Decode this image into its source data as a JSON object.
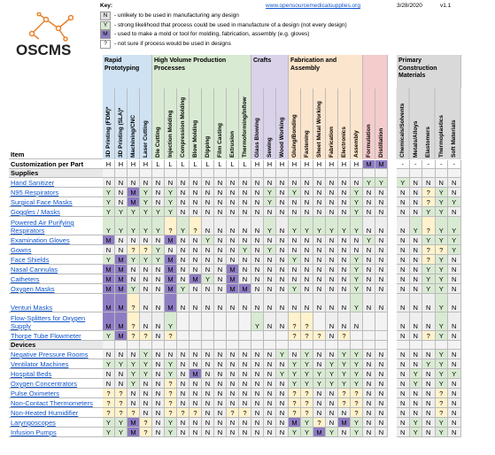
{
  "logo": "OSCMS",
  "key": {
    "title": "Key:",
    "link": "www.opensourcemedicalsupplies.org",
    "date": "3/28/2020",
    "version": "v1.1",
    "items": [
      {
        "code": "N",
        "text": "- unlikely to be used in manufacturing any design",
        "color": "#e0e0e0"
      },
      {
        "code": "Y",
        "text": "- strong likelihood that process could be used in manufacture of a design (not every design)",
        "color": "#d9ead3"
      },
      {
        "code": "M",
        "text": "- used to make a mold or tool for molding, fabrication, assembly (e.g. gloves)",
        "color": "#8e7cc3"
      },
      {
        "code": "?",
        "text": "- not sure if process would be used in designs",
        "color": "#ffffff"
      }
    ]
  },
  "table": {
    "item_header": "Item",
    "customization_label": "Customization per Part",
    "cell_colors": {
      "N": "#eeeeee",
      "Y": "#d9ead3",
      "M": "#8e7cc3",
      "?": "#fff2cc"
    },
    "groups": [
      {
        "name": "Rapid Prototyping",
        "color": "#cfe2f3",
        "columns": [
          "3D Printing (FDM)*",
          "3D Printing (SLA)*",
          "Machining/CNC Mill/Routing",
          "Laser Cutting"
        ]
      },
      {
        "name": "High Volume Production Processes",
        "color": "#d9ead3",
        "columns": [
          "Die Cutting",
          "Injection Molding",
          "Compression Molding",
          "Blow Molding",
          "Dipping",
          "Film Casting",
          "Extrusion",
          "Thermoforming/Inflow"
        ]
      },
      {
        "name": "Crafts",
        "color": "#d9d2e9",
        "columns": [
          "Glass Blowing",
          "Sewing",
          "Wood Working"
        ]
      },
      {
        "name": "Fabrication and Assembly",
        "color": "#fce5cd",
        "columns": [
          "Gluing/Bonding",
          "Fastening",
          "Sheet Metal Working",
          "Fabrication",
          "Electronics",
          "Assembly"
        ]
      },
      {
        "name": null,
        "color": "#f4cccc",
        "columns": [
          "Formulation",
          "Distillation"
        ]
      },
      {
        "name": "Primary Construction Materials",
        "color": "#d9d9d9",
        "columns": [
          "Chemicals/Solvents",
          "Metals/Alloys",
          "Elastomers",
          "Thermoplastics",
          "Soft Materials"
        ]
      }
    ],
    "customization": [
      "H",
      "H",
      "H",
      "H",
      "L",
      "L",
      "L",
      "L",
      "L",
      "L",
      "L",
      "L",
      "H",
      "H",
      "H",
      "H",
      "H",
      "H",
      "H",
      "H",
      "H",
      "M",
      "M",
      "-",
      "-",
      "-",
      "-",
      "-"
    ],
    "sections": [
      {
        "name": "Supplies",
        "rows": [
          {
            "item": "Hand Sanitizer",
            "cells": [
              "N",
              "N",
              "N",
              "N",
              "N",
              "N",
              "N",
              "N",
              "N",
              "N",
              "N",
              "N",
              "N",
              "N",
              "N",
              "N",
              "N",
              "N",
              "N",
              "N",
              "N",
              "Y",
              "Y",
              "Y",
              "N",
              "N",
              "N",
              "N"
            ]
          },
          {
            "item": "N95 Respirators",
            "cells": [
              "Y",
              "N",
              "M",
              "Y",
              "N",
              "Y",
              "N",
              "N",
              "N",
              "N",
              "N",
              "N",
              "N",
              "Y",
              "N",
              "Y",
              "N",
              "N",
              "N",
              "N",
              "Y",
              "N",
              "N",
              "N",
              "N",
              "?",
              "Y",
              "N"
            ]
          },
          {
            "item": "Surgical Face Masks",
            "cells": [
              "Y",
              "N",
              "M",
              "Y",
              "N",
              "Y",
              "N",
              "N",
              "N",
              "N",
              "N",
              "N",
              "N",
              "Y",
              "N",
              "N",
              "N",
              "N",
              "N",
              "N",
              "Y",
              "N",
              "N",
              "N",
              "N",
              "?",
              "Y",
              "Y"
            ]
          },
          {
            "item": "Goggles / Masks",
            "cells": [
              "Y",
              "Y",
              "Y",
              "Y",
              "Y",
              "Y",
              "N",
              "N",
              "N",
              "N",
              "N",
              "N",
              "N",
              "N",
              "N",
              "N",
              "N",
              "N",
              "N",
              "N",
              "Y",
              "N",
              "N",
              "N",
              "N",
              "Y",
              "Y",
              "N"
            ]
          },
          {
            "item": "Powered Air Purifying Respirators",
            "cells": [
              "Y",
              "Y",
              "Y",
              "Y",
              "Y",
              "?",
              "Y",
              "?",
              "N",
              "N",
              "N",
              "N",
              "N",
              "Y",
              "N",
              "Y",
              "Y",
              "Y",
              "Y",
              "Y",
              "Y",
              "N",
              "N",
              "N",
              "Y",
              "?",
              "Y",
              "Y"
            ]
          },
          {
            "item": "Examination Gloves",
            "cells": [
              "M",
              "N",
              "N",
              "N",
              "N",
              "M",
              "N",
              "N",
              "Y",
              "N",
              "N",
              "N",
              "N",
              "N",
              "N",
              "N",
              "N",
              "N",
              "N",
              "N",
              "N",
              "Y",
              "N",
              "N",
              "N",
              "Y",
              "Y",
              "Y"
            ]
          },
          {
            "item": "Gowns",
            "cells": [
              "N",
              "N",
              "?",
              "?",
              "Y",
              "N",
              "N",
              "N",
              "N",
              "N",
              "N",
              "Y",
              "N",
              "Y",
              "N",
              "N",
              "N",
              "N",
              "N",
              "N",
              "N",
              "N",
              "N",
              "N",
              "N",
              "?",
              "?",
              "Y"
            ]
          },
          {
            "item": "Face Shields",
            "cells": [
              "Y",
              "M",
              "Y",
              "Y",
              "Y",
              "M",
              "N",
              "N",
              "N",
              "N",
              "N",
              "N",
              "N",
              "N",
              "N",
              "Y",
              "N",
              "N",
              "N",
              "N",
              "Y",
              "N",
              "N",
              "N",
              "N",
              "?",
              "Y",
              "N"
            ]
          },
          {
            "item": "Nasal Cannulas",
            "cells": [
              "M",
              "M",
              "N",
              "N",
              "N",
              "M",
              "N",
              "N",
              "N",
              "N",
              "M",
              "N",
              "N",
              "N",
              "N",
              "N",
              "N",
              "N",
              "N",
              "N",
              "Y",
              "N",
              "N",
              "N",
              "N",
              "Y",
              "Y",
              "N"
            ]
          },
          {
            "item": "Catheters",
            "cells": [
              "M",
              "M",
              "N",
              "N",
              "N",
              "M",
              "N",
              "M",
              "Y",
              "N",
              "M",
              "N",
              "N",
              "N",
              "N",
              "N",
              "N",
              "N",
              "N",
              "N",
              "Y",
              "N",
              "N",
              "N",
              "N",
              "Y",
              "Y",
              "N"
            ]
          },
          {
            "item": "Oxygen Masks",
            "cells": [
              "M",
              "M",
              "Y",
              "N",
              "N",
              "M",
              "Y",
              "N",
              "N",
              "N",
              "M",
              "M",
              "N",
              "N",
              "N",
              "Y",
              "N",
              "N",
              "N",
              "N",
              "Y",
              "N",
              "N",
              "N",
              "N",
              "Y",
              "Y",
              "N"
            ]
          },
          {
            "item": "Venturi Masks",
            "cells": [
              "M",
              "M",
              "?",
              "N",
              "N",
              "M",
              "N",
              "N",
              "N",
              "N",
              "N",
              "N",
              "N",
              "N",
              "N",
              "N",
              "N",
              "N",
              "N",
              "N",
              "Y",
              "N",
              "N",
              "N",
              "N",
              "N",
              "Y",
              "N"
            ]
          },
          {
            "item": "Flow-Splitters for Oxygen Supply",
            "cells": [
              "M",
              "M",
              "?",
              "N",
              "N",
              "Y",
              null,
              null,
              null,
              null,
              null,
              null,
              "Y",
              "N",
              "N",
              "?",
              "?",
              null,
              "N",
              "N",
              "N",
              null,
              null,
              "N",
              "N",
              "N",
              "Y",
              "N"
            ]
          },
          {
            "item": "Thorpe Tube Flowmeter",
            "cells": [
              "Y",
              "M",
              "?",
              "?",
              "N",
              "?",
              null,
              null,
              null,
              null,
              null,
              null,
              null,
              null,
              null,
              "?",
              "?",
              "?",
              "N",
              "?",
              null,
              null,
              null,
              "N",
              "N",
              "?",
              "Y",
              "N"
            ]
          }
        ]
      },
      {
        "name": "Devices",
        "rows": [
          {
            "item": "Negative Pressure Rooms",
            "cells": [
              "N",
              "N",
              "N",
              "Y",
              "N",
              "N",
              "N",
              "N",
              "N",
              "N",
              "N",
              "N",
              "N",
              "N",
              "Y",
              "N",
              "Y",
              "N",
              "N",
              "Y",
              "Y",
              "N",
              "N",
              "N",
              "N",
              "N",
              "Y",
              "N"
            ]
          },
          {
            "item": "Ventilator Machines",
            "cells": [
              "Y",
              "Y",
              "Y",
              "Y",
              "N",
              "Y",
              "N",
              "N",
              "N",
              "N",
              "N",
              "N",
              "N",
              "N",
              "N",
              "Y",
              "Y",
              "N",
              "Y",
              "Y",
              "Y",
              "N",
              "N",
              "N",
              "N",
              "Y",
              "Y",
              "N"
            ]
          },
          {
            "item": "Hospital Beds",
            "cells": [
              "N",
              "N",
              "Y",
              "Y",
              "N",
              "Y",
              "N",
              "M",
              "N",
              "N",
              "N",
              "N",
              "N",
              "N",
              "Y",
              "Y",
              "Y",
              "Y",
              "Y",
              "Y",
              "Y",
              "N",
              "N",
              "N",
              "Y",
              "N",
              "Y",
              "Y"
            ]
          },
          {
            "item": "Oxygen Concentrators",
            "cells": [
              "N",
              "N",
              "Y",
              "N",
              "N",
              "?",
              "N",
              "N",
              "N",
              "N",
              "N",
              "N",
              "N",
              "N",
              "N",
              "Y",
              "Y",
              "Y",
              "Y",
              "Y",
              "Y",
              "N",
              "N",
              "N",
              "Y",
              "N",
              "Y",
              "N"
            ]
          },
          {
            "item": "Pulse Oximeters",
            "cells": [
              "?",
              "?",
              "N",
              "N",
              "N",
              "?",
              "N",
              "N",
              "N",
              "N",
              "N",
              "N",
              "N",
              "N",
              "N",
              "?",
              "?",
              "N",
              "N",
              "?",
              "?",
              "N",
              "N",
              "N",
              "N",
              "N",
              "?",
              "N"
            ]
          },
          {
            "item": "Non-Contact Thermometers",
            "cells": [
              "?",
              "?",
              "N",
              "N",
              "N",
              "?",
              "N",
              "N",
              "N",
              "N",
              "N",
              "N",
              "N",
              "N",
              "N",
              "?",
              "?",
              "N",
              "N",
              "?",
              "?",
              "N",
              "N",
              "N",
              "N",
              "N",
              "?",
              "N"
            ]
          },
          {
            "item": "Non-Heated Humidifier",
            "cells": [
              "?",
              "?",
              "?",
              "N",
              "N",
              "?",
              "?",
              "?",
              "N",
              "N",
              "?",
              "?",
              "N",
              "N",
              "N",
              "?",
              "?",
              "N",
              "N",
              "N",
              "?",
              "N",
              "N",
              "N",
              "N",
              "N",
              "?",
              "N"
            ]
          },
          {
            "item": "Laryngoscopes",
            "cells": [
              "Y",
              "Y",
              "M",
              "?",
              "N",
              "Y",
              "N",
              "N",
              "N",
              "N",
              "N",
              "N",
              "N",
              "N",
              "N",
              "M",
              "Y",
              "?",
              "N",
              "M",
              "Y",
              "N",
              "N",
              "N",
              "Y",
              "N",
              "Y",
              "N"
            ]
          },
          {
            "item": "Infusion Pumps",
            "cells": [
              "Y",
              "Y",
              "M",
              "?",
              "N",
              "Y",
              "N",
              "N",
              "N",
              "N",
              "N",
              "N",
              "N",
              "N",
              "N",
              "Y",
              "Y",
              "M",
              "Y",
              "N",
              "Y",
              "N",
              "N",
              "N",
              "Y",
              "N",
              "Y",
              "N"
            ]
          }
        ]
      }
    ]
  }
}
